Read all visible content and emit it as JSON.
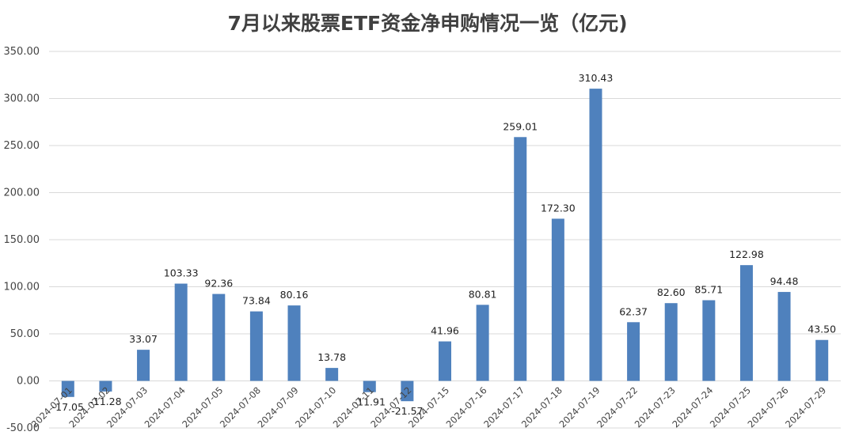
{
  "chart_data": {
    "type": "bar",
    "title": "7月以来股票ETF资金净申购情况一览（亿元)",
    "xlabel": "",
    "ylabel": "",
    "ylim": [
      -50,
      350
    ],
    "y_ticks": [
      "-50.00",
      "0.00",
      "50.00",
      "100.00",
      "150.00",
      "200.00",
      "250.00",
      "300.00",
      "350.00"
    ],
    "grid": true,
    "legend": "none",
    "bar_color": "#4f81bd",
    "categories": [
      "2024-07-01",
      "2024-07-02",
      "2024-07-03",
      "2024-07-04",
      "2024-07-05",
      "2024-07-08",
      "2024-07-09",
      "2024-07-10",
      "2024-07-11",
      "2024-07-12",
      "2024-07-15",
      "2024-07-16",
      "2024-07-17",
      "2024-07-18",
      "2024-07-19",
      "2024-07-22",
      "2024-07-23",
      "2024-07-24",
      "2024-07-25",
      "2024-07-26",
      "2024-07-29"
    ],
    "values": [
      -17.05,
      -11.28,
      33.07,
      103.33,
      92.36,
      73.84,
      80.16,
      13.78,
      -11.91,
      -21.57,
      41.96,
      80.81,
      259.01,
      172.3,
      310.43,
      62.37,
      82.6,
      85.71,
      122.98,
      94.48,
      43.5
    ],
    "data_labels": [
      "-17.05",
      "-11.28",
      "33.07",
      "103.33",
      "92.36",
      "73.84",
      "80.16",
      "13.78",
      "-11.91",
      "-21.57",
      "41.96",
      "80.81",
      "259.01",
      "172.30",
      "310.43",
      "62.37",
      "82.60",
      "85.71",
      "122.98",
      "94.48",
      "43.50"
    ]
  }
}
